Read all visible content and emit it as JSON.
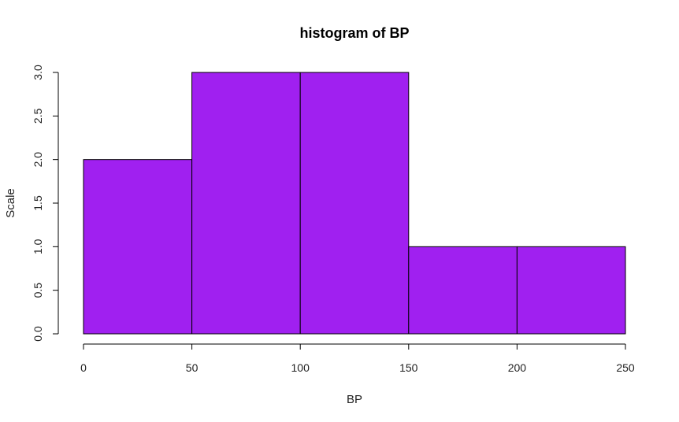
{
  "chart_data": {
    "type": "bar",
    "title": "histogram of BP",
    "xlabel": "BP",
    "ylabel": "Scale",
    "bins": [
      {
        "start": 0,
        "end": 50,
        "count": 2
      },
      {
        "start": 50,
        "end": 100,
        "count": 3
      },
      {
        "start": 100,
        "end": 150,
        "count": 3
      },
      {
        "start": 150,
        "end": 200,
        "count": 1
      },
      {
        "start": 200,
        "end": 250,
        "count": 1
      }
    ],
    "xlim": [
      0,
      250
    ],
    "ylim": [
      0,
      3
    ],
    "x_ticks": [
      0,
      50,
      100,
      150,
      200,
      250
    ],
    "y_ticks": [
      0,
      0.5,
      1,
      1.5,
      2,
      2.5,
      3
    ],
    "y_tick_labels": [
      "0.0",
      "0.5",
      "1.0",
      "1.5",
      "2.0",
      "2.5",
      "3.0"
    ],
    "bar_color": "#a020f0",
    "grid": false,
    "legend": "none"
  }
}
